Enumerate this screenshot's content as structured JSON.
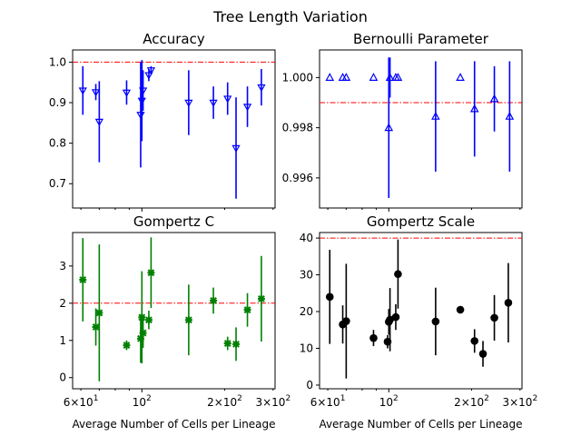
{
  "figure": {
    "suptitle": "Tree Length Variation"
  },
  "chart_data": [
    {
      "type": "scatter",
      "title": "Accuracy",
      "xlabel": "",
      "ylabel": "",
      "xscale": "log",
      "xlim": [
        56,
        305
      ],
      "ylim": [
        0.64,
        1.03
      ],
      "yticks": [
        0.7,
        0.8,
        0.9,
        1.0
      ],
      "ytick_labels": [
        "0.7",
        "0.8",
        "0.9",
        "1.0"
      ],
      "show_xtick_labels": false,
      "marker": "tri_down",
      "color": "#0000ff",
      "reference_line": {
        "y": 1.0,
        "color": "#ff0000",
        "style": "dash-dot"
      },
      "points": [
        {
          "x": 61,
          "y": 0.93,
          "err": 0.06
        },
        {
          "x": 68,
          "y": 0.926,
          "err": 0.02
        },
        {
          "x": 70,
          "y": 0.853,
          "err": 0.1
        },
        {
          "x": 88,
          "y": 0.925,
          "err": 0.03
        },
        {
          "x": 99,
          "y": 0.87,
          "err": 0.13
        },
        {
          "x": 100,
          "y": 0.905,
          "err": 0.1
        },
        {
          "x": 101,
          "y": 0.93,
          "err": 0.05
        },
        {
          "x": 106,
          "y": 0.968,
          "err": 0.015
        },
        {
          "x": 108,
          "y": 0.98,
          "err": 0.01
        },
        {
          "x": 148,
          "y": 0.9,
          "err": 0.08
        },
        {
          "x": 182,
          "y": 0.9,
          "err": 0.04
        },
        {
          "x": 205,
          "y": 0.91,
          "err": 0.04
        },
        {
          "x": 220,
          "y": 0.788,
          "err": 0.125
        },
        {
          "x": 242,
          "y": 0.89,
          "err": 0.05
        },
        {
          "x": 272,
          "y": 0.938,
          "err": 0.045
        }
      ]
    },
    {
      "type": "scatter",
      "title": "Bernoulli Parameter",
      "xlabel": "",
      "ylabel": "",
      "xscale": "log",
      "xlim": [
        56,
        305
      ],
      "ylim": [
        0.9948,
        1.0011
      ],
      "yticks": [
        0.996,
        0.998,
        1.0
      ],
      "ytick_labels": [
        "0.996",
        "0.998",
        "1.000"
      ],
      "show_xtick_labels": false,
      "marker": "triangle_up",
      "color": "#0000ff",
      "reference_line": {
        "y": 0.999,
        "color": "#ff0000",
        "style": "dash-dot"
      },
      "points": [
        {
          "x": 61,
          "y": 1.0,
          "err": 0
        },
        {
          "x": 68,
          "y": 1.0,
          "err": 0
        },
        {
          "x": 70,
          "y": 1.0,
          "err": 0
        },
        {
          "x": 88,
          "y": 1.0,
          "err": 0
        },
        {
          "x": 100,
          "y": 0.998,
          "err": 0.0028
        },
        {
          "x": 101,
          "y": 1.0,
          "err": 0.0008
        },
        {
          "x": 106,
          "y": 1.0,
          "err": 0
        },
        {
          "x": 108,
          "y": 1.0,
          "err": 0
        },
        {
          "x": 148,
          "y": 0.99845,
          "err": 0.0022
        },
        {
          "x": 182,
          "y": 1.0,
          "err": 0
        },
        {
          "x": 205,
          "y": 0.99875,
          "err": 0.0019
        },
        {
          "x": 242,
          "y": 0.99915,
          "err": 0.0013
        },
        {
          "x": 275,
          "y": 0.99845,
          "err": 0.0022
        }
      ]
    },
    {
      "type": "scatter",
      "title": "Gompertz C",
      "xlabel": "Average Number of Cells per Lineage",
      "ylabel": "",
      "xscale": "log",
      "xlim": [
        56,
        305
      ],
      "ylim": [
        -0.3,
        3.9
      ],
      "yticks": [
        0,
        1,
        2,
        3
      ],
      "ytick_labels": [
        "0",
        "1",
        "2",
        "3"
      ],
      "xticks": [
        60,
        100,
        200,
        300
      ],
      "xtick_labels": [
        {
          "mant": "6",
          "exp": "1"
        },
        {
          "mant": "",
          "exp": "2"
        },
        {
          "mant": "2",
          "exp": "2"
        },
        {
          "mant": "3",
          "exp": "2"
        }
      ],
      "marker": "x_filled",
      "color": "#008000",
      "reference_line": {
        "y": 2.0,
        "color": "#ff0000",
        "style": "dash-dot"
      },
      "points": [
        {
          "x": 61,
          "y": 2.63,
          "err": 1.12
        },
        {
          "x": 68,
          "y": 1.36,
          "err": 0.5
        },
        {
          "x": 70,
          "y": 1.74,
          "err": 1.84
        },
        {
          "x": 88,
          "y": 0.87,
          "err": 0.13
        },
        {
          "x": 99,
          "y": 1.05,
          "err": 0.65
        },
        {
          "x": 100,
          "y": 1.62,
          "err": 1.24
        },
        {
          "x": 101,
          "y": 1.2,
          "err": 0.4
        },
        {
          "x": 106,
          "y": 1.55,
          "err": 0.25
        },
        {
          "x": 108,
          "y": 2.82,
          "err": 0.95
        },
        {
          "x": 148,
          "y": 1.55,
          "err": 0.95
        },
        {
          "x": 182,
          "y": 2.07,
          "err": 0.35
        },
        {
          "x": 205,
          "y": 0.92,
          "err": 0.18
        },
        {
          "x": 220,
          "y": 0.9,
          "err": 0.45
        },
        {
          "x": 242,
          "y": 1.82,
          "err": 0.45
        },
        {
          "x": 272,
          "y": 2.12,
          "err": 1.15
        }
      ]
    },
    {
      "type": "scatter",
      "title": "Gompertz Scale",
      "xlabel": "Average Number of Cells per Lineage",
      "ylabel": "",
      "xscale": "log",
      "xlim": [
        56,
        305
      ],
      "ylim": [
        -1,
        41.5
      ],
      "yticks": [
        0,
        10,
        20,
        30,
        40
      ],
      "ytick_labels": [
        "0",
        "10",
        "20",
        "30",
        "40"
      ],
      "xticks": [
        60,
        100,
        200,
        300
      ],
      "xtick_labels": [
        {
          "mant": "6",
          "exp": "1"
        },
        {
          "mant": "",
          "exp": "2"
        },
        {
          "mant": "2",
          "exp": "2"
        },
        {
          "mant": "3",
          "exp": "2"
        }
      ],
      "marker": "circle",
      "color": "#000000",
      "reference_line": {
        "y": 40,
        "color": "#ff0000",
        "style": "dash-dot"
      },
      "points": [
        {
          "x": 61,
          "y": 24,
          "err": 12.8
        },
        {
          "x": 68,
          "y": 16.5,
          "err": 5.2
        },
        {
          "x": 70,
          "y": 17.4,
          "err": 15.6
        },
        {
          "x": 88,
          "y": 12.8,
          "err": 2.2
        },
        {
          "x": 99,
          "y": 11.8,
          "err": 1.8
        },
        {
          "x": 100,
          "y": 17.2,
          "err": 3.5
        },
        {
          "x": 101,
          "y": 17.8,
          "err": 8.6
        },
        {
          "x": 106,
          "y": 18.5,
          "err": 3.5
        },
        {
          "x": 108,
          "y": 30.2,
          "err": 9.4
        },
        {
          "x": 148,
          "y": 17.3,
          "err": 9.2
        },
        {
          "x": 182,
          "y": 20.5,
          "err": 0.8
        },
        {
          "x": 205,
          "y": 12,
          "err": 3.2
        },
        {
          "x": 220,
          "y": 8.5,
          "err": 3.5
        },
        {
          "x": 242,
          "y": 18.3,
          "err": 6.2
        },
        {
          "x": 272,
          "y": 22.4,
          "err": 10.8
        }
      ]
    }
  ]
}
